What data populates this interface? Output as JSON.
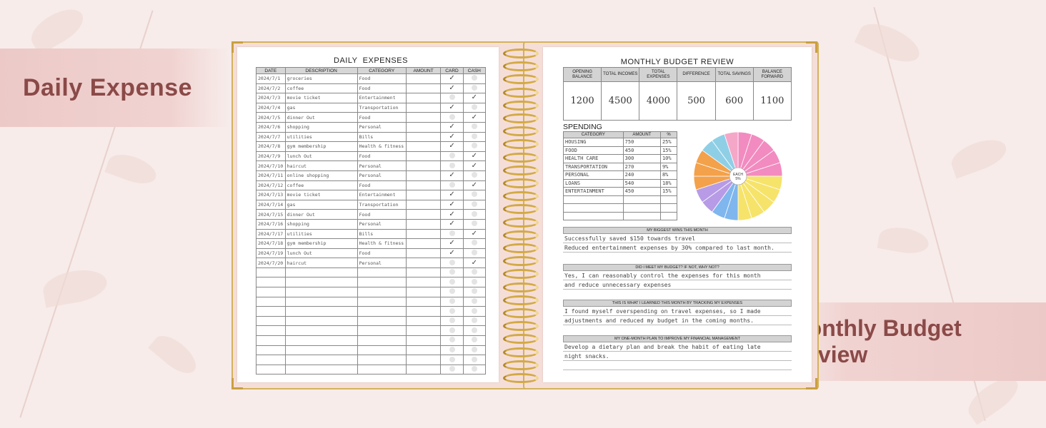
{
  "banners": {
    "left": "Daily Expense",
    "right": "Monthly Budget Review"
  },
  "daily": {
    "title_a": "DAILY",
    "title_b": "EXPENSES",
    "headers": [
      "DATE",
      "DESCRIPTION",
      "CATEGORY",
      "AMOUNT",
      "CARD",
      "CASH"
    ],
    "rows": [
      {
        "date": "2024/7/1",
        "desc": "groceries",
        "cat": "Food",
        "pay": "card"
      },
      {
        "date": "2024/7/2",
        "desc": "coffee",
        "cat": "Food",
        "pay": "card"
      },
      {
        "date": "2024/7/3",
        "desc": "movie ticket",
        "cat": "Entertainment",
        "pay": "cash"
      },
      {
        "date": "2024/7/4",
        "desc": "gas",
        "cat": "Transportation",
        "pay": "card"
      },
      {
        "date": "2024/7/5",
        "desc": "dinner Out",
        "cat": "Food",
        "pay": "cash"
      },
      {
        "date": "2024/7/6",
        "desc": "shopping",
        "cat": "Personal",
        "pay": "card"
      },
      {
        "date": "2024/7/7",
        "desc": "utilities",
        "cat": "Bills",
        "pay": "card"
      },
      {
        "date": "2024/7/8",
        "desc": "gym membership",
        "cat": "Health & fitness",
        "pay": "card"
      },
      {
        "date": "2024/7/9",
        "desc": "lunch Out",
        "cat": "Food",
        "pay": "cash"
      },
      {
        "date": "2024/7/10",
        "desc": "haircut",
        "cat": "Personal",
        "pay": "cash"
      },
      {
        "date": "2024/7/11",
        "desc": "online shopping",
        "cat": "Personal",
        "pay": "card"
      },
      {
        "date": "2024/7/12",
        "desc": "coffee",
        "cat": "Food",
        "pay": "cash"
      },
      {
        "date": "2024/7/13",
        "desc": "movie ticket",
        "cat": "Entertainment",
        "pay": "card"
      },
      {
        "date": "2024/7/14",
        "desc": "gas",
        "cat": "Transportation",
        "pay": "card"
      },
      {
        "date": "2024/7/15",
        "desc": "dinner Out",
        "cat": "Food",
        "pay": "card"
      },
      {
        "date": "2024/7/16",
        "desc": "shopping",
        "cat": "Personal",
        "pay": "card"
      },
      {
        "date": "2024/7/17",
        "desc": "utilities",
        "cat": "Bills",
        "pay": "cash"
      },
      {
        "date": "2024/7/18",
        "desc": "gym membership",
        "cat": "Health & fitness",
        "pay": "card"
      },
      {
        "date": "2024/7/19",
        "desc": "lunch Out",
        "cat": "Food",
        "pay": "card"
      },
      {
        "date": "2024/7/20",
        "desc": "haircut",
        "cat": "Personal",
        "pay": "cash"
      }
    ],
    "blank_rows": 11
  },
  "monthly": {
    "title": "MONTHLY  BUDGET  REVIEW",
    "summary_headers": [
      "OPENING BALANCE",
      "TOTAL INCOMES",
      "TOTAL EXPENSES",
      "DIFFERENCE",
      "TOTAL SAVINGS",
      "BALANCE FORWARD"
    ],
    "summary_values": [
      "1200",
      "4500",
      "4000",
      "500",
      "600",
      "1100"
    ],
    "spending_title": "SPENDING",
    "spending_headers": [
      "CATEGORY",
      "AMOUNT",
      "%"
    ],
    "spending_rows": [
      {
        "cat": "HOUSING",
        "amt": "750",
        "pct": "25%"
      },
      {
        "cat": "FOOD",
        "amt": "450",
        "pct": "15%"
      },
      {
        "cat": "HEALTH CARE",
        "amt": "300",
        "pct": "10%"
      },
      {
        "cat": "TRANSPORTATION",
        "amt": "270",
        "pct": "9%"
      },
      {
        "cat": "PERSONAL",
        "amt": "240",
        "pct": "8%"
      },
      {
        "cat": "LOANS",
        "amt": "540",
        "pct": "18%"
      },
      {
        "cat": "ENTERTAINMENT",
        "amt": "450",
        "pct": "15%"
      }
    ],
    "spending_blank_rows": 3,
    "wheel_center": "EACH 5%",
    "wheel_colors": [
      "#f28bc0",
      "#f28bc0",
      "#f28bc0",
      "#f28bc0",
      "#f28bc0",
      "#f6e36a",
      "#f6e36a",
      "#f6e36a",
      "#f6e36a",
      "#f6e36a",
      "#7fb6ee",
      "#7fb6ee",
      "#b79be6",
      "#b79be6",
      "#f3a14a",
      "#f3a14a",
      "#f3a14a",
      "#8fcfe6",
      "#8fcfe6",
      "#f5a7c8"
    ],
    "sections": [
      {
        "title": "MY BIGGEST WINS THIS MONTH",
        "lines": [
          "Successfully saved $150 towards travel",
          "Reduced entertainment expenses by 30% compared to last month."
        ]
      },
      {
        "title": "DID I MEET MY BUDGET? IF NOT, WHY NOT?",
        "lines": [
          "Yes, I can reasonably control the expenses for this month",
          " and reduce unnecessary expenses"
        ]
      },
      {
        "title": "THIS IS WHAT I LEARNED THIS MONTH BY TRACKING MY EXPENSES",
        "lines": [
          "I found myself overspending on travel expenses, so I made",
          "adjustments and reduced my budget in the coming months."
        ]
      },
      {
        "title": "MY ONE-MONTH PLAN TO IMPROVE MY FINANCIAL MANAGEMENT",
        "lines": [
          "Develop a dietary plan and break the habit of eating late",
          "night snacks.",
          ""
        ]
      }
    ]
  }
}
